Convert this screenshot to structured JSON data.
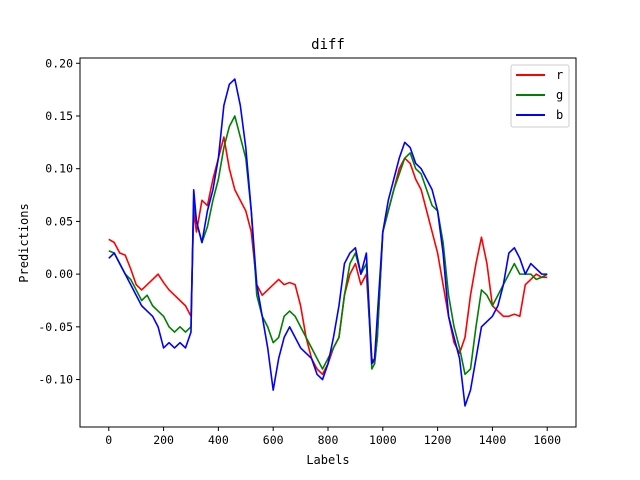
{
  "chart_data": {
    "type": "line",
    "title": "diff",
    "xlabel": "Labels",
    "ylabel": "Predictions",
    "xlim": [
      -105,
      1705
    ],
    "ylim": [
      -0.145,
      0.205
    ],
    "xticks": [
      0,
      200,
      400,
      600,
      800,
      1000,
      1200,
      1400,
      1600
    ],
    "xtick_labels": [
      "0",
      "200",
      "400",
      "600",
      "800",
      "1000",
      "1200",
      "1400",
      "1600"
    ],
    "yticks": [
      -0.1,
      -0.05,
      0.0,
      0.05,
      0.1,
      0.15,
      0.2
    ],
    "ytick_labels": [
      "-0.10",
      "-0.05",
      "0.00",
      "0.05",
      "0.10",
      "0.15",
      "0.20"
    ],
    "grid": false,
    "legend_position": "top-right",
    "series": [
      {
        "name": "r",
        "color": "#ff0000",
        "x": [
          0,
          20,
          40,
          60,
          80,
          100,
          120,
          140,
          160,
          180,
          200,
          220,
          240,
          260,
          280,
          300,
          310,
          320,
          340,
          360,
          380,
          400,
          420,
          440,
          460,
          480,
          500,
          520,
          540,
          560,
          580,
          600,
          620,
          640,
          660,
          680,
          700,
          720,
          740,
          760,
          780,
          800,
          820,
          840,
          860,
          880,
          900,
          920,
          940,
          960,
          970,
          980,
          1000,
          1020,
          1040,
          1060,
          1080,
          1100,
          1120,
          1140,
          1160,
          1180,
          1200,
          1220,
          1240,
          1260,
          1280,
          1300,
          1320,
          1340,
          1360,
          1380,
          1400,
          1420,
          1440,
          1460,
          1480,
          1500,
          1520,
          1540,
          1560,
          1580,
          1600
        ],
        "y": [
          0.033,
          0.03,
          0.02,
          0.018,
          0.005,
          -0.01,
          -0.015,
          -0.01,
          -0.005,
          0.0,
          -0.008,
          -0.015,
          -0.02,
          -0.025,
          -0.03,
          -0.04,
          0.06,
          0.04,
          0.07,
          0.065,
          0.09,
          0.11,
          0.13,
          0.1,
          0.08,
          0.07,
          0.06,
          0.04,
          -0.01,
          -0.02,
          -0.015,
          -0.01,
          -0.005,
          -0.01,
          -0.008,
          -0.01,
          -0.03,
          -0.06,
          -0.08,
          -0.09,
          -0.095,
          -0.085,
          -0.07,
          -0.06,
          -0.02,
          0.0,
          0.01,
          -0.01,
          0.0,
          -0.08,
          -0.085,
          -0.06,
          0.04,
          0.06,
          0.08,
          0.1,
          0.11,
          0.105,
          0.09,
          0.08,
          0.06,
          0.04,
          0.02,
          -0.01,
          -0.04,
          -0.065,
          -0.075,
          -0.06,
          -0.02,
          0.01,
          0.035,
          0.01,
          -0.03,
          -0.035,
          -0.04,
          -0.04,
          -0.038,
          -0.04,
          -0.01,
          -0.005,
          0.0,
          -0.003,
          -0.003
        ]
      },
      {
        "name": "g",
        "color": "#008000",
        "x": [
          0,
          20,
          40,
          60,
          80,
          100,
          120,
          140,
          160,
          180,
          200,
          220,
          240,
          260,
          280,
          300,
          310,
          320,
          340,
          360,
          380,
          400,
          420,
          440,
          460,
          480,
          500,
          520,
          540,
          560,
          580,
          600,
          620,
          640,
          660,
          680,
          700,
          720,
          740,
          760,
          780,
          800,
          820,
          840,
          860,
          880,
          900,
          920,
          940,
          960,
          970,
          980,
          1000,
          1020,
          1040,
          1060,
          1080,
          1100,
          1120,
          1140,
          1160,
          1180,
          1200,
          1220,
          1240,
          1260,
          1280,
          1300,
          1320,
          1340,
          1360,
          1380,
          1400,
          1420,
          1440,
          1460,
          1480,
          1500,
          1520,
          1540,
          1560,
          1580,
          1600
        ],
        "y": [
          0.022,
          0.02,
          0.01,
          0.0,
          -0.005,
          -0.015,
          -0.025,
          -0.02,
          -0.03,
          -0.035,
          -0.04,
          -0.05,
          -0.055,
          -0.05,
          -0.055,
          -0.05,
          0.07,
          0.05,
          0.03,
          0.045,
          0.07,
          0.09,
          0.12,
          0.14,
          0.15,
          0.13,
          0.11,
          0.06,
          -0.02,
          -0.04,
          -0.05,
          -0.065,
          -0.06,
          -0.04,
          -0.035,
          -0.04,
          -0.05,
          -0.06,
          -0.07,
          -0.08,
          -0.09,
          -0.08,
          -0.07,
          -0.06,
          -0.02,
          0.01,
          0.02,
          0.0,
          0.01,
          -0.09,
          -0.085,
          -0.06,
          0.04,
          0.06,
          0.08,
          0.095,
          0.11,
          0.115,
          0.1,
          0.095,
          0.08,
          0.065,
          0.06,
          0.03,
          -0.02,
          -0.05,
          -0.07,
          -0.095,
          -0.09,
          -0.05,
          -0.015,
          -0.02,
          -0.03,
          -0.02,
          -0.01,
          0.0,
          0.01,
          0.0,
          0.0,
          0.0,
          -0.005,
          -0.003,
          0.0
        ]
      },
      {
        "name": "b",
        "color": "#0000ff",
        "x": [
          0,
          20,
          40,
          60,
          80,
          100,
          120,
          140,
          160,
          180,
          200,
          220,
          240,
          260,
          280,
          300,
          310,
          320,
          340,
          360,
          380,
          400,
          420,
          440,
          460,
          480,
          500,
          520,
          540,
          560,
          580,
          600,
          620,
          640,
          660,
          680,
          700,
          720,
          740,
          760,
          780,
          800,
          820,
          840,
          860,
          880,
          900,
          920,
          940,
          960,
          970,
          980,
          1000,
          1020,
          1040,
          1060,
          1080,
          1100,
          1120,
          1140,
          1160,
          1180,
          1200,
          1220,
          1240,
          1260,
          1280,
          1300,
          1320,
          1340,
          1360,
          1380,
          1400,
          1420,
          1440,
          1460,
          1480,
          1500,
          1520,
          1540,
          1560,
          1580,
          1600
        ],
        "y": [
          0.015,
          0.02,
          0.01,
          0.0,
          -0.01,
          -0.02,
          -0.03,
          -0.035,
          -0.04,
          -0.05,
          -0.07,
          -0.065,
          -0.07,
          -0.065,
          -0.07,
          -0.055,
          0.08,
          0.05,
          0.03,
          0.06,
          0.08,
          0.11,
          0.16,
          0.18,
          0.185,
          0.16,
          0.12,
          0.06,
          -0.01,
          -0.04,
          -0.07,
          -0.11,
          -0.08,
          -0.06,
          -0.05,
          -0.06,
          -0.07,
          -0.075,
          -0.08,
          -0.095,
          -0.1,
          -0.085,
          -0.06,
          -0.03,
          0.01,
          0.02,
          0.025,
          0.0,
          0.02,
          -0.085,
          -0.08,
          -0.04,
          0.04,
          0.07,
          0.09,
          0.11,
          0.125,
          0.12,
          0.105,
          0.1,
          0.09,
          0.08,
          0.06,
          0.02,
          -0.04,
          -0.06,
          -0.08,
          -0.125,
          -0.11,
          -0.08,
          -0.05,
          -0.045,
          -0.04,
          -0.03,
          -0.01,
          0.02,
          0.025,
          0.015,
          0.0,
          0.01,
          0.005,
          0.0,
          0.0
        ]
      }
    ]
  }
}
